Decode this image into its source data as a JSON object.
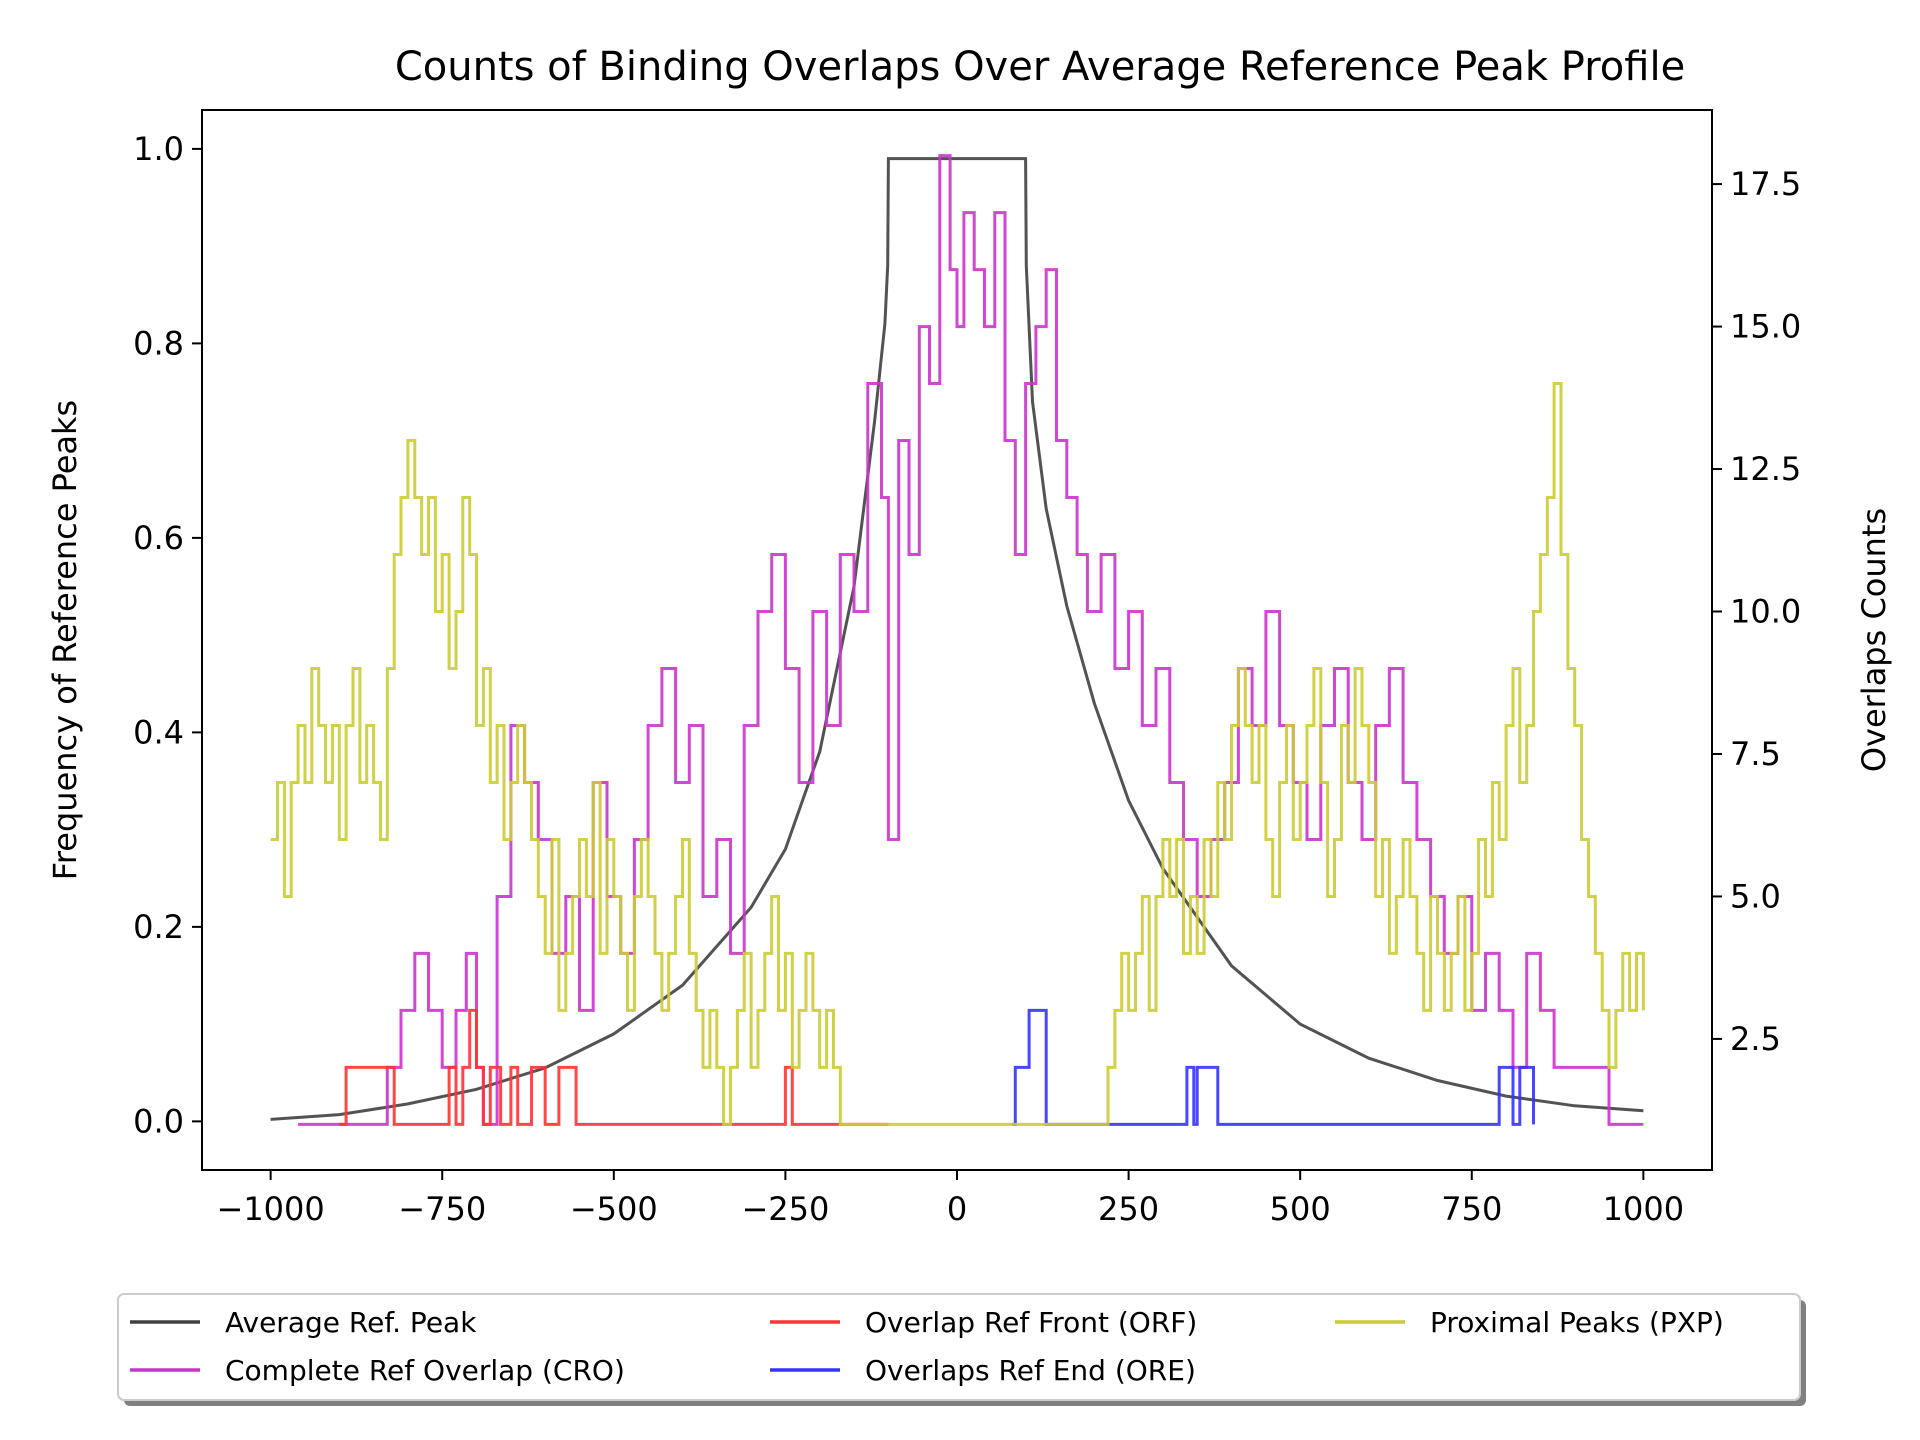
{
  "chart_data": {
    "type": "line",
    "title": "Counts of Binding Overlaps Over Average Reference Peak Profile",
    "xlabel": "",
    "ylabel": "Frequency of Reference Peaks",
    "y2label": "Overlaps Counts",
    "xlim": [
      -1100,
      1100
    ],
    "ylim": [
      -0.05,
      1.04
    ],
    "y2lim": [
      0.2,
      18.8
    ],
    "xticks": [
      -1000,
      -750,
      -500,
      -250,
      0,
      250,
      500,
      750,
      1000
    ],
    "xtick_labels": [
      "−1000",
      "−750",
      "−500",
      "−250",
      "0",
      "250",
      "500",
      "750",
      "1000"
    ],
    "yticks": [
      0.0,
      0.2,
      0.4,
      0.6,
      0.8,
      1.0
    ],
    "ytick_labels": [
      "0.0",
      "0.2",
      "0.4",
      "0.6",
      "0.8",
      "1.0"
    ],
    "y2ticks": [
      2.5,
      5.0,
      7.5,
      10.0,
      12.5,
      15.0,
      17.5
    ],
    "y2tick_labels": [
      "2.5",
      "5.0",
      "7.5",
      "10.0",
      "12.5",
      "15.0",
      "17.5"
    ],
    "grid": false,
    "legend_position": "bottom-center",
    "series": [
      {
        "name": "Average Ref. Peak",
        "axis": "left",
        "color": "#404040",
        "x": [
          -1000,
          -900,
          -800,
          -700,
          -600,
          -500,
          -400,
          -300,
          -250,
          -200,
          -150,
          -120,
          -105,
          -101,
          -100,
          100,
          101,
          110,
          130,
          160,
          200,
          250,
          300,
          400,
          500,
          600,
          700,
          800,
          900,
          1000
        ],
        "y": [
          0.002,
          0.007,
          0.018,
          0.033,
          0.055,
          0.09,
          0.14,
          0.22,
          0.28,
          0.38,
          0.55,
          0.72,
          0.82,
          0.88,
          0.99,
          0.99,
          0.88,
          0.74,
          0.63,
          0.53,
          0.43,
          0.33,
          0.26,
          0.16,
          0.1,
          0.065,
          0.042,
          0.026,
          0.016,
          0.011
        ]
      },
      {
        "name": "Complete Ref Overlap (CRO)",
        "axis": "right",
        "color": "#cc33cc",
        "x": [
          -960,
          -900,
          -850,
          -830,
          -810,
          -790,
          -770,
          -750,
          -730,
          -715,
          -700,
          -690,
          -670,
          -650,
          -630,
          -610,
          -590,
          -570,
          -550,
          -530,
          -510,
          -490,
          -470,
          -450,
          -430,
          -410,
          -390,
          -370,
          -350,
          -330,
          -310,
          -290,
          -270,
          -250,
          -230,
          -210,
          -190,
          -170,
          -150,
          -130,
          -110,
          -100,
          -85,
          -70,
          -55,
          -40,
          -25,
          -10,
          0,
          10,
          25,
          40,
          55,
          70,
          85,
          100,
          115,
          130,
          145,
          160,
          175,
          190,
          210,
          230,
          250,
          270,
          290,
          310,
          330,
          350,
          370,
          390,
          410,
          430,
          450,
          470,
          490,
          510,
          530,
          550,
          570,
          590,
          610,
          630,
          650,
          670,
          690,
          710,
          730,
          750,
          770,
          790,
          810,
          830,
          850,
          870,
          900,
          950,
          1000
        ],
        "y": [
          1,
          1,
          1,
          2,
          3,
          4,
          3,
          2,
          3,
          4,
          2,
          1,
          5,
          8,
          7,
          6,
          4,
          5,
          3,
          7,
          5,
          4,
          6,
          8,
          9,
          7,
          8,
          5,
          6,
          4,
          8,
          10,
          11,
          9,
          7,
          10,
          8,
          11,
          10,
          14,
          12,
          6,
          13,
          11,
          15,
          14,
          18,
          16,
          15,
          17,
          16,
          15,
          17,
          13,
          11,
          14,
          15,
          16,
          13,
          12,
          11,
          10,
          11,
          9,
          10,
          8,
          9,
          7,
          6,
          5,
          6,
          7,
          9,
          8,
          10,
          8,
          7,
          6,
          8,
          9,
          7,
          6,
          8,
          9,
          7,
          6,
          5,
          4,
          5,
          3,
          4,
          3,
          2,
          4,
          3,
          2,
          2,
          1,
          1
        ]
      },
      {
        "name": "Overlap Ref Front (ORF)",
        "axis": "right",
        "color": "#ff3333",
        "x": [
          -900,
          -890,
          -830,
          -820,
          -750,
          -740,
          -730,
          -720,
          -710,
          -700,
          -690,
          -680,
          -665,
          -650,
          -640,
          -620,
          -600,
          -580,
          -565,
          -555,
          -480,
          -460,
          -440,
          -420,
          -300,
          -260,
          -250,
          -240,
          -170,
          -100
        ],
        "y": [
          1,
          2,
          2,
          1,
          1,
          2,
          1,
          2,
          3,
          2,
          1,
          2,
          1,
          2,
          1,
          2,
          1,
          2,
          2,
          1,
          1,
          1,
          1,
          1,
          1,
          1,
          2,
          1,
          1,
          1
        ]
      },
      {
        "name": "Overlaps Ref End (ORE)",
        "axis": "right",
        "color": "#3333ff",
        "x": [
          80,
          85,
          100,
          105,
          120,
          130,
          200,
          330,
          335,
          345,
          350,
          380,
          500,
          780,
          790,
          810,
          820,
          840
        ],
        "y": [
          1,
          2,
          2,
          3,
          3,
          1,
          1,
          1,
          2,
          1,
          2,
          1,
          1,
          1,
          2,
          1,
          2,
          1
        ]
      },
      {
        "name": "Proximal Peaks (PXP)",
        "axis": "right",
        "color": "#cccc33",
        "x": [
          -1000,
          -990,
          -980,
          -970,
          -960,
          -950,
          -940,
          -930,
          -920,
          -910,
          -900,
          -890,
          -880,
          -870,
          -860,
          -850,
          -840,
          -830,
          -820,
          -810,
          -800,
          -790,
          -780,
          -770,
          -760,
          -750,
          -740,
          -730,
          -720,
          -710,
          -700,
          -690,
          -680,
          -670,
          -660,
          -650,
          -640,
          -630,
          -620,
          -610,
          -600,
          -590,
          -580,
          -570,
          -560,
          -550,
          -540,
          -530,
          -520,
          -510,
          -500,
          -490,
          -480,
          -470,
          -460,
          -450,
          -440,
          -430,
          -420,
          -410,
          -400,
          -390,
          -380,
          -370,
          -360,
          -350,
          -340,
          -330,
          -320,
          -310,
          -300,
          -290,
          -280,
          -270,
          -260,
          -250,
          -240,
          -230,
          -220,
          -210,
          -200,
          -190,
          -180,
          -170,
          -100,
          100,
          200,
          210,
          220,
          230,
          240,
          250,
          260,
          270,
          280,
          290,
          300,
          310,
          320,
          330,
          340,
          350,
          360,
          370,
          380,
          390,
          400,
          410,
          420,
          430,
          440,
          450,
          460,
          470,
          480,
          490,
          500,
          510,
          520,
          530,
          540,
          550,
          560,
          570,
          580,
          590,
          600,
          610,
          620,
          630,
          640,
          650,
          660,
          670,
          680,
          690,
          700,
          710,
          720,
          730,
          740,
          750,
          760,
          770,
          780,
          790,
          800,
          810,
          820,
          830,
          840,
          850,
          860,
          870,
          880,
          890,
          900,
          910,
          920,
          930,
          940,
          950,
          960,
          970,
          980,
          990,
          1000
        ],
        "y": [
          6,
          7,
          5,
          7,
          8,
          7,
          9,
          8,
          7,
          8,
          6,
          8,
          9,
          7,
          8,
          7,
          6,
          9,
          11,
          12,
          13,
          12,
          11,
          12,
          10,
          11,
          9,
          10,
          12,
          11,
          8,
          9,
          7,
          8,
          6,
          7,
          8,
          7,
          6,
          5,
          4,
          6,
          3,
          4,
          5,
          6,
          5,
          7,
          4,
          6,
          5,
          4,
          3,
          5,
          6,
          5,
          4,
          3,
          4,
          5,
          6,
          4,
          3,
          2,
          3,
          2,
          1,
          2,
          3,
          4,
          2,
          3,
          4,
          5,
          3,
          4,
          2,
          3,
          4,
          3,
          2,
          3,
          2,
          1,
          1,
          1,
          1,
          1,
          2,
          3,
          4,
          3,
          4,
          5,
          3,
          5,
          6,
          5,
          6,
          4,
          5,
          4,
          6,
          5,
          7,
          6,
          8,
          9,
          8,
          7,
          8,
          6,
          5,
          7,
          8,
          6,
          7,
          8,
          9,
          7,
          5,
          6,
          8,
          7,
          9,
          8,
          7,
          5,
          6,
          4,
          5,
          6,
          5,
          4,
          3,
          5,
          4,
          3,
          4,
          5,
          3,
          4,
          6,
          5,
          7,
          6,
          8,
          9,
          7,
          8,
          10,
          11,
          12,
          14,
          11,
          9,
          8,
          6,
          5,
          4,
          3,
          2,
          3,
          4,
          3,
          4,
          3
        ]
      }
    ]
  },
  "legend": {
    "items": [
      {
        "label": "Average Ref. Peak",
        "color": "#404040"
      },
      {
        "label": "Complete Ref Overlap (CRO)",
        "color": "#cc33cc"
      },
      {
        "label": "Overlap Ref Front (ORF)",
        "color": "#ff3333"
      },
      {
        "label": "Overlaps Ref End (ORE)",
        "color": "#3333ff"
      },
      {
        "label": "Proximal Peaks (PXP)",
        "color": "#cccc33"
      }
    ]
  }
}
